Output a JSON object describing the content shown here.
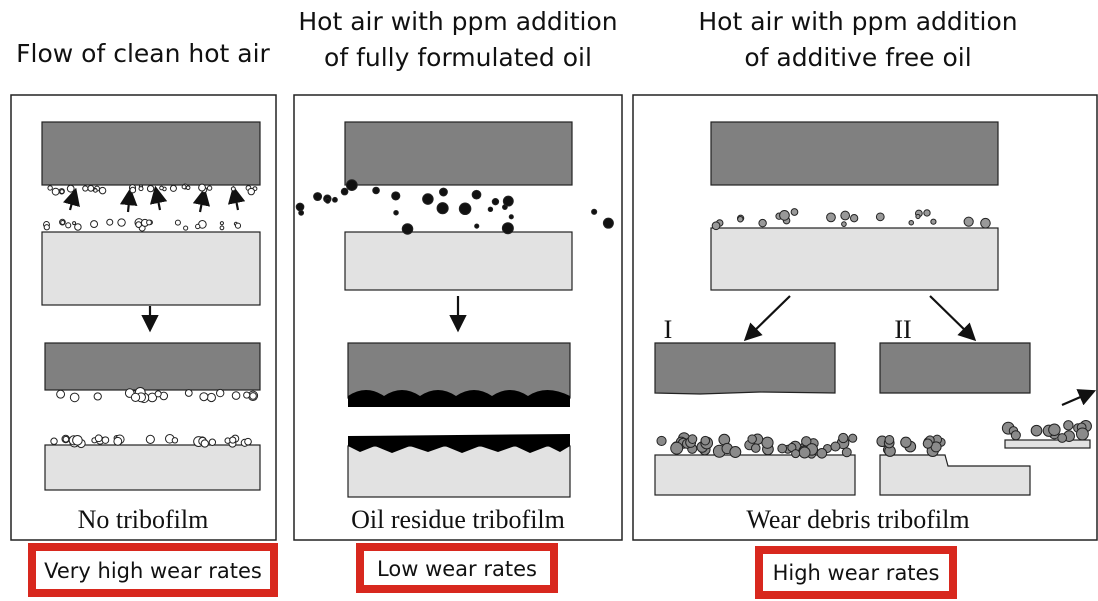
{
  "panels": [
    {
      "header": [
        "Flow of clean hot air"
      ],
      "caption": "No tribofilm",
      "outcome": "Very high wear rates"
    },
    {
      "header": [
        "Hot air with ppm addition",
        "of fully formulated oil"
      ],
      "caption": "Oil residue tribofilm",
      "outcome": "Low wear rates"
    },
    {
      "header": [
        "Hot air with ppm addition",
        "of additive free oil"
      ],
      "caption": "Wear debris tribofilm",
      "outcome": "High wear rates"
    }
  ],
  "stages": [
    "I",
    "II"
  ]
}
